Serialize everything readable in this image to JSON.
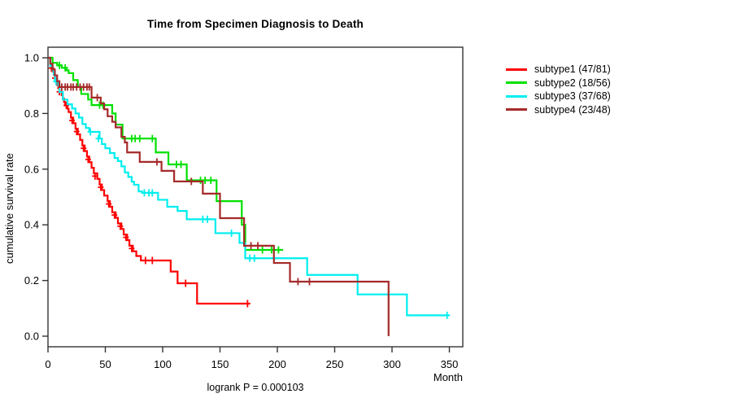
{
  "chart_data": {
    "type": "line",
    "subtype": "kaplan-meier-step-curves",
    "title": "Time from Specimen Diagnosis to Death",
    "xlabel": "Month",
    "ylabel": "cumulative survival rate",
    "annotation": "logrank P = 0.000103",
    "grid": false,
    "legend_position": "top-right-outside",
    "xlim": [
      0,
      362
    ],
    "ylim": [
      0,
      1.0
    ],
    "x_ticks": [
      0,
      50,
      100,
      150,
      200,
      250,
      300,
      350
    ],
    "y_ticks": [
      {
        "value": 1.0,
        "label": "1.0"
      },
      {
        "value": 0.8,
        "label": "0.8"
      },
      {
        "value": 0.6,
        "label": "0.6"
      },
      {
        "value": 0.4,
        "label": "0.4"
      },
      {
        "value": 0.2,
        "label": "0.2"
      },
      {
        "value": 0.0,
        "label": "0.0"
      }
    ],
    "axis_color": "#333333",
    "series": [
      {
        "name": "subtype1",
        "label": "subtype1 (47/81)",
        "events": 47,
        "n": 81,
        "color": "#ff0000",
        "points": [
          [
            0,
            1
          ],
          [
            2,
            0.975
          ],
          [
            3,
            0.963
          ],
          [
            4,
            0.951
          ],
          [
            5,
            0.939
          ],
          [
            6,
            0.927
          ],
          [
            7,
            0.914
          ],
          [
            8,
            0.902
          ],
          [
            9,
            0.89
          ],
          [
            10,
            0.878
          ],
          [
            12,
            0.866
          ],
          [
            13,
            0.853
          ],
          [
            14,
            0.841
          ],
          [
            15,
            0.829
          ],
          [
            17,
            0.817
          ],
          [
            18,
            0.805
          ],
          [
            20,
            0.785
          ],
          [
            22,
            0.765
          ],
          [
            24,
            0.745
          ],
          [
            26,
            0.725
          ],
          [
            28,
            0.705
          ],
          [
            30,
            0.685
          ],
          [
            32,
            0.665
          ],
          [
            34,
            0.645
          ],
          [
            36,
            0.625
          ],
          [
            38,
            0.605
          ],
          [
            40,
            0.585
          ],
          [
            43,
            0.565
          ],
          [
            45,
            0.545
          ],
          [
            47,
            0.525
          ],
          [
            49,
            0.505
          ],
          [
            52,
            0.485
          ],
          [
            54,
            0.465
          ],
          [
            56,
            0.445
          ],
          [
            59,
            0.425
          ],
          [
            61,
            0.405
          ],
          [
            64,
            0.385
          ],
          [
            66,
            0.365
          ],
          [
            69,
            0.345
          ],
          [
            71,
            0.325
          ],
          [
            74,
            0.305
          ],
          [
            77,
            0.288
          ],
          [
            81,
            0.272
          ],
          [
            107,
            0.232
          ],
          [
            113,
            0.19
          ],
          [
            130,
            0.117
          ],
          [
            176,
            0.117
          ]
        ],
        "censors": [
          [
            3,
            0.963
          ],
          [
            6,
            0.927
          ],
          [
            10,
            0.878
          ],
          [
            16,
            0.829
          ],
          [
            21,
            0.775
          ],
          [
            25,
            0.735
          ],
          [
            31,
            0.675
          ],
          [
            35,
            0.635
          ],
          [
            41,
            0.575
          ],
          [
            46,
            0.535
          ],
          [
            53,
            0.475
          ],
          [
            58,
            0.435
          ],
          [
            63,
            0.395
          ],
          [
            68,
            0.355
          ],
          [
            73,
            0.315
          ],
          [
            85,
            0.272
          ],
          [
            91,
            0.272
          ],
          [
            120,
            0.19
          ],
          [
            174,
            0.117
          ]
        ]
      },
      {
        "name": "subtype2",
        "label": "subtype2 (18/56)",
        "events": 18,
        "n": 56,
        "color": "#00e000",
        "points": [
          [
            0,
            1
          ],
          [
            4,
            0.982
          ],
          [
            8,
            0.973
          ],
          [
            12,
            0.964
          ],
          [
            16,
            0.955
          ],
          [
            18,
            0.945
          ],
          [
            22,
            0.92
          ],
          [
            26,
            0.895
          ],
          [
            29,
            0.87
          ],
          [
            35,
            0.85
          ],
          [
            38,
            0.83
          ],
          [
            56,
            0.8
          ],
          [
            59,
            0.76
          ],
          [
            65,
            0.71
          ],
          [
            94,
            0.66
          ],
          [
            105,
            0.617
          ],
          [
            121,
            0.56
          ],
          [
            147,
            0.485
          ],
          [
            169,
            0.4
          ],
          [
            172,
            0.31
          ],
          [
            205,
            0.31
          ]
        ],
        "censors": [
          [
            10,
            0.973
          ],
          [
            15,
            0.964
          ],
          [
            45,
            0.83
          ],
          [
            48,
            0.83
          ],
          [
            73,
            0.71
          ],
          [
            76,
            0.71
          ],
          [
            80,
            0.71
          ],
          [
            91,
            0.71
          ],
          [
            112,
            0.617
          ],
          [
            116,
            0.617
          ],
          [
            133,
            0.56
          ],
          [
            137,
            0.56
          ],
          [
            142,
            0.56
          ],
          [
            187,
            0.31
          ],
          [
            195,
            0.31
          ],
          [
            201,
            0.31
          ]
        ]
      },
      {
        "name": "subtype3",
        "label": "subtype3 (37/68)",
        "events": 37,
        "n": 68,
        "color": "#00eeee",
        "points": [
          [
            0,
            1
          ],
          [
            2,
            0.97
          ],
          [
            4,
            0.955
          ],
          [
            5,
            0.94
          ],
          [
            6,
            0.915
          ],
          [
            9,
            0.9
          ],
          [
            10,
            0.877
          ],
          [
            13,
            0.85
          ],
          [
            17,
            0.833
          ],
          [
            21,
            0.818
          ],
          [
            24,
            0.8
          ],
          [
            27,
            0.785
          ],
          [
            30,
            0.762
          ],
          [
            33,
            0.748
          ],
          [
            36,
            0.734
          ],
          [
            45,
            0.71
          ],
          [
            47,
            0.69
          ],
          [
            50,
            0.675
          ],
          [
            54,
            0.658
          ],
          [
            58,
            0.64
          ],
          [
            61,
            0.629
          ],
          [
            64,
            0.61
          ],
          [
            67,
            0.588
          ],
          [
            70,
            0.572
          ],
          [
            73,
            0.555
          ],
          [
            75,
            0.544
          ],
          [
            79,
            0.52
          ],
          [
            82,
            0.515
          ],
          [
            96,
            0.49
          ],
          [
            104,
            0.465
          ],
          [
            113,
            0.45
          ],
          [
            121,
            0.42
          ],
          [
            146,
            0.37
          ],
          [
            167,
            0.335
          ],
          [
            172,
            0.28
          ],
          [
            226,
            0.22
          ],
          [
            270,
            0.15
          ],
          [
            313,
            0.075
          ],
          [
            350,
            0.075
          ]
        ],
        "censors": [
          [
            7,
            0.915
          ],
          [
            37,
            0.734
          ],
          [
            44,
            0.71
          ],
          [
            84,
            0.515
          ],
          [
            88,
            0.515
          ],
          [
            91,
            0.515
          ],
          [
            135,
            0.42
          ],
          [
            139,
            0.42
          ],
          [
            160,
            0.37
          ],
          [
            176,
            0.28
          ],
          [
            180,
            0.28
          ],
          [
            348,
            0.075
          ]
        ]
      },
      {
        "name": "subtype4",
        "label": "subtype4 (23/48)",
        "events": 23,
        "n": 48,
        "color": "#a52a2a",
        "points": [
          [
            0,
            1
          ],
          [
            2,
            0.979
          ],
          [
            4,
            0.958
          ],
          [
            6,
            0.937
          ],
          [
            8,
            0.916
          ],
          [
            10,
            0.895
          ],
          [
            38,
            0.857
          ],
          [
            46,
            0.836
          ],
          [
            49,
            0.815
          ],
          [
            52,
            0.79
          ],
          [
            56,
            0.77
          ],
          [
            59,
            0.75
          ],
          [
            64,
            0.716
          ],
          [
            67,
            0.696
          ],
          [
            69,
            0.66
          ],
          [
            80,
            0.626
          ],
          [
            99,
            0.594
          ],
          [
            110,
            0.556
          ],
          [
            135,
            0.512
          ],
          [
            150,
            0.424
          ],
          [
            171,
            0.325
          ],
          [
            197,
            0.263
          ],
          [
            211,
            0.196
          ],
          [
            297,
            0
          ]
        ],
        "censors": [
          [
            12,
            0.895
          ],
          [
            15,
            0.895
          ],
          [
            17,
            0.895
          ],
          [
            20,
            0.895
          ],
          [
            22,
            0.895
          ],
          [
            25,
            0.895
          ],
          [
            28,
            0.895
          ],
          [
            31,
            0.895
          ],
          [
            34,
            0.895
          ],
          [
            36,
            0.895
          ],
          [
            43,
            0.857
          ],
          [
            95,
            0.626
          ],
          [
            125,
            0.556
          ],
          [
            177,
            0.325
          ],
          [
            183,
            0.325
          ],
          [
            218,
            0.196
          ],
          [
            228,
            0.196
          ]
        ]
      }
    ]
  }
}
